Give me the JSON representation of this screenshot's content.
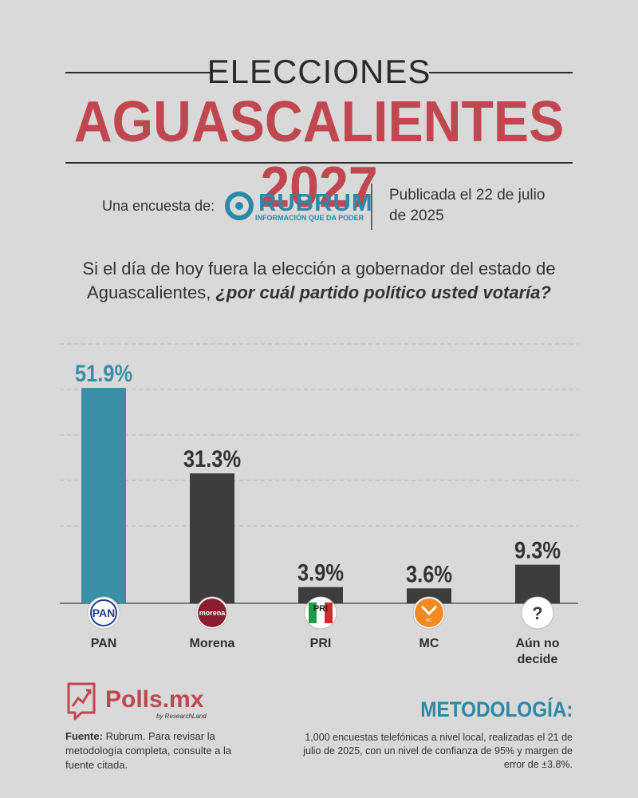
{
  "header": {
    "title_small": "ELECCIONES",
    "title_big": "AGUASCALIENTES 2027"
  },
  "source": {
    "label": "Una encuesta de:",
    "pollster": "RUBRUM",
    "pollster_tagline": "INFORMACIÓN QUE DA PODER",
    "published": "Publicada el 22 de julio de 2025"
  },
  "question": {
    "text_plain": "Si el día de hoy fuera la elección a gobernador del estado de Aguascalientes, ",
    "text_emphasis": "¿por cuál partido político usted votaría?"
  },
  "chart_data": {
    "type": "bar",
    "categories": [
      "PAN",
      "Morena",
      "PRI",
      "MC",
      "Aún no decide"
    ],
    "values": [
      51.9,
      31.3,
      3.9,
      3.6,
      9.3
    ],
    "value_labels": [
      "51.9%",
      "31.3%",
      "3.9%",
      "3.6%",
      "9.3%"
    ],
    "ylim": [
      0,
      55
    ],
    "grid": true,
    "title": "",
    "xlabel": "",
    "ylabel": "",
    "icons": [
      "pan-logo-icon",
      "morena-logo-icon",
      "pri-logo-icon",
      "mc-logo-icon",
      "question-mark-icon"
    ],
    "colors": [
      "#3a8ea5",
      "#3d3d3d",
      "#3d3d3d",
      "#3d3d3d",
      "#3d3d3d"
    ]
  },
  "footer": {
    "brand": "Polls.mx",
    "brand_sub": "by ResearchLand",
    "source_label": "Fuente:",
    "source_text": " Rubrum. Para revisar la metodología completa, consulte a la fuente citada.",
    "method_title": "METODOLOGÍA:",
    "method_text": "1,000 encuestas telefónicas a nivel local, realizadas el 21 de julio de 2025, con un nivel de confianza de 95% y margen de error de ±3.8%."
  },
  "colors": {
    "accent_red": "#c0464f",
    "accent_blue": "#2a88a8",
    "bar_dark": "#3d3d3d",
    "bar_pan": "#3a8ea5"
  }
}
